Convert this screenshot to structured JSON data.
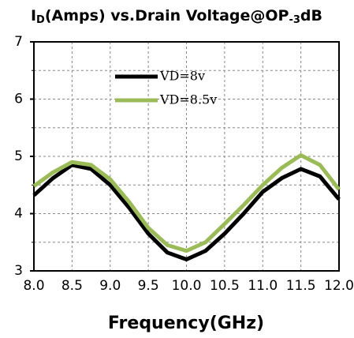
{
  "chart_data": {
    "type": "line",
    "title_parts": [
      "I",
      "D",
      "(Amps) vs.Drain Voltage@OP",
      "-3",
      "dB"
    ],
    "x_label": "Frequency(GHz)",
    "x": [
      8.0,
      8.25,
      8.5,
      8.75,
      9.0,
      9.25,
      9.5,
      9.75,
      10.0,
      10.25,
      10.5,
      10.75,
      11.0,
      11.25,
      11.5,
      11.75,
      12.0
    ],
    "series": [
      {
        "name": "VD=8v",
        "color": "#000000",
        "values": [
          4.32,
          4.62,
          4.85,
          4.78,
          4.5,
          4.1,
          3.65,
          3.32,
          3.2,
          3.35,
          3.65,
          4.0,
          4.38,
          4.62,
          4.78,
          4.65,
          4.25
        ]
      },
      {
        "name": "VD=8.5v",
        "color": "#9bbb59",
        "values": [
          4.48,
          4.72,
          4.9,
          4.85,
          4.6,
          4.2,
          3.75,
          3.45,
          3.35,
          3.5,
          3.82,
          4.15,
          4.5,
          4.8,
          5.02,
          4.85,
          4.42
        ]
      }
    ],
    "xlim": [
      8.0,
      12.0
    ],
    "xticks": [
      {
        "value": 8.0,
        "label": "8.0"
      },
      {
        "value": 8.5,
        "label": "8.5"
      },
      {
        "value": 9.0,
        "label": "9.0"
      },
      {
        "value": 9.5,
        "label": "9.5"
      },
      {
        "value": 10.0,
        "label": "10.0"
      },
      {
        "value": 10.5,
        "label": "10.5"
      },
      {
        "value": 11.0,
        "label": "11.0"
      },
      {
        "value": 11.5,
        "label": "11.5"
      },
      {
        "value": 12.0,
        "label": "12.0"
      }
    ],
    "ylim": [
      3,
      7
    ],
    "yticks": [
      3,
      4,
      5,
      6,
      7
    ],
    "minor_yticks": [
      3.5,
      4.5,
      5.5,
      6.5
    ],
    "grid": true
  }
}
